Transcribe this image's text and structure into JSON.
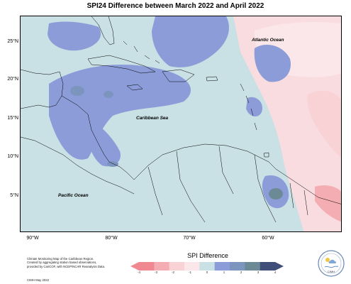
{
  "title": "SPI24 Difference between March 2022 and April 2022",
  "lat_labels": [
    "25°N",
    "20°N",
    "15°N",
    "10°N",
    "5°N"
  ],
  "lon_labels": [
    "90°W",
    "80°W",
    "70°W",
    "60°W"
  ],
  "oceans": [
    "Atlantic Ocean",
    "Caribbean Sea",
    "Pacific Ocean"
  ],
  "credit_lines": [
    "Climate Monitoring Map of the Caribbean Region.",
    "Created by aggregating station based observations,",
    "provided by CariCOF, with NCEP/NCAR Reanalysis Data."
  ],
  "issued": "CIMH May 2022",
  "legend": {
    "title": "SPI Difference",
    "ticks": [
      "-4",
      "-3",
      "-2",
      "-1",
      "0",
      "1",
      "2",
      "3",
      "4"
    ],
    "colors": [
      "#f08891",
      "#f4aeb3",
      "#f8d2d5",
      "#fbe7e9",
      "#c9e0e4",
      "#8c9cd8",
      "#7b95bf",
      "#6b8a96",
      "#3f4f7a"
    ]
  },
  "logo": {
    "text": "CIMH"
  }
}
